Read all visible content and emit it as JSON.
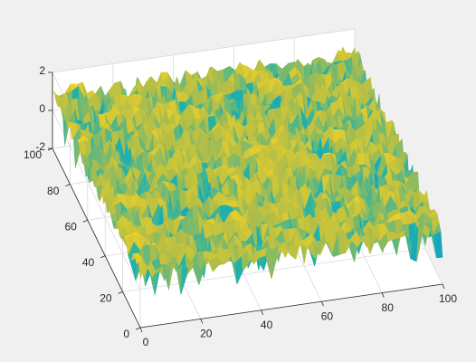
{
  "chart_data": {
    "type": "surface",
    "title": "",
    "xlabel": "",
    "ylabel": "",
    "zlabel": "",
    "xlim": [
      0,
      100
    ],
    "ylim": [
      0,
      100
    ],
    "zlim": [
      -2,
      2
    ],
    "x_ticks": [
      "0",
      "20",
      "40",
      "60",
      "80",
      "100"
    ],
    "y_ticks": [
      "0",
      "20",
      "40",
      "60",
      "80",
      "100"
    ],
    "z_ticks": [
      "-2",
      "0",
      "2"
    ],
    "grid": true,
    "colormap": "parula",
    "surface_description": "random noise surface over a 100x100 grid; most values between 0 and 1, dips down toward -1",
    "z_range_observed": [
      -1,
      1.3
    ],
    "colors": {
      "background": "#f0f0f0",
      "axes_background": "#ffffff",
      "low": "#0072bd",
      "mid": "#20b2aa",
      "high": "#f9d423"
    }
  }
}
